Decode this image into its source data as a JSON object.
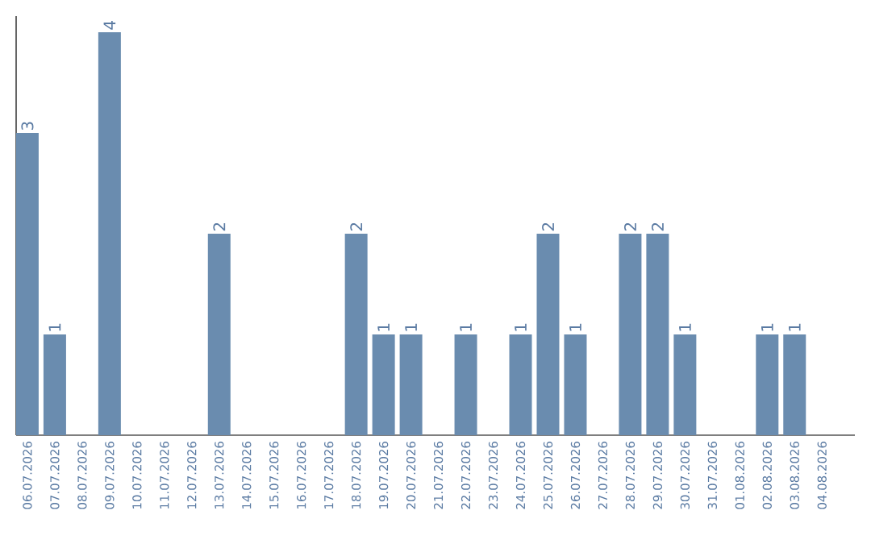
{
  "chart_data": {
    "type": "bar",
    "categories": [
      "06.07.2026",
      "07.07.2026",
      "08.07.2026",
      "09.07.2026",
      "10.07.2026",
      "11.07.2026",
      "12.07.2026",
      "13.07.2026",
      "14.07.2026",
      "15.07.2026",
      "16.07.2026",
      "17.07.2026",
      "18.07.2026",
      "19.07.2026",
      "20.07.2026",
      "21.07.2026",
      "22.07.2026",
      "23.07.2026",
      "24.07.2026",
      "25.07.2026",
      "26.07.2026",
      "27.07.2026",
      "28.07.2026",
      "29.07.2026",
      "30.07.2026",
      "31.07.2026",
      "01.08.2026",
      "02.08.2026",
      "03.08.2026",
      "04.08.2026"
    ],
    "values": [
      3,
      1,
      0,
      4,
      0,
      0,
      0,
      2,
      0,
      0,
      0,
      0,
      2,
      1,
      1,
      0,
      1,
      0,
      1,
      2,
      1,
      0,
      2,
      2,
      1,
      0,
      0,
      1,
      1,
      0
    ],
    "value_labels": [
      "3",
      "1",
      null,
      "4",
      null,
      null,
      null,
      "2",
      null,
      null,
      null,
      null,
      "2",
      "1",
      "1",
      null,
      "1",
      null,
      "1",
      "2",
      "1",
      null,
      "2",
      "2",
      "1",
      null,
      null,
      "1",
      "1",
      null
    ],
    "color": "#6a8caf",
    "tick_labels": "x"
  }
}
